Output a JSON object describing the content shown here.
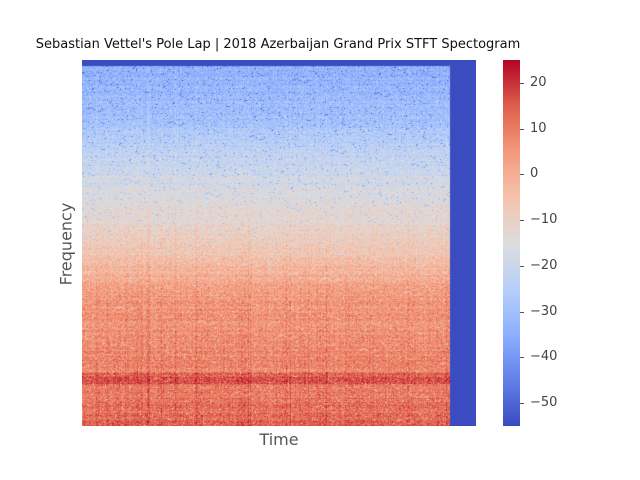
{
  "chart_data": {
    "type": "heatmap",
    "title": "Sebastian Vettel's Pole Lap | 2018 Azerbaijan Grand Prix STFT Spectogram",
    "xlabel": "Time",
    "ylabel": "Frequency",
    "x_ticks_shown": false,
    "y_ticks_shown": false,
    "grid": false,
    "colormap": "coolwarm",
    "colorbar": {
      "min": -55,
      "max": 25,
      "ticks": [
        20,
        10,
        0,
        -10,
        -20,
        -30,
        -40,
        -50
      ],
      "tick_labels": [
        "20",
        "10",
        "0",
        "−10",
        "−20",
        "−30",
        "−40",
        "−50"
      ],
      "placement": "right"
    },
    "signal_extent_fraction_of_time": 0.935,
    "fill_value_after_signal": -55,
    "mean_level_by_frequency_fraction": [
      {
        "f": 0.0,
        "db": 16
      },
      {
        "f": 0.02,
        "db": 13
      },
      {
        "f": 0.1,
        "db": 10
      },
      {
        "f": 0.35,
        "db": 5
      },
      {
        "f": 0.5,
        "db": -8
      },
      {
        "f": 0.7,
        "db": -20
      },
      {
        "f": 0.85,
        "db": -30
      },
      {
        "f": 1.0,
        "db": -35
      }
    ]
  }
}
